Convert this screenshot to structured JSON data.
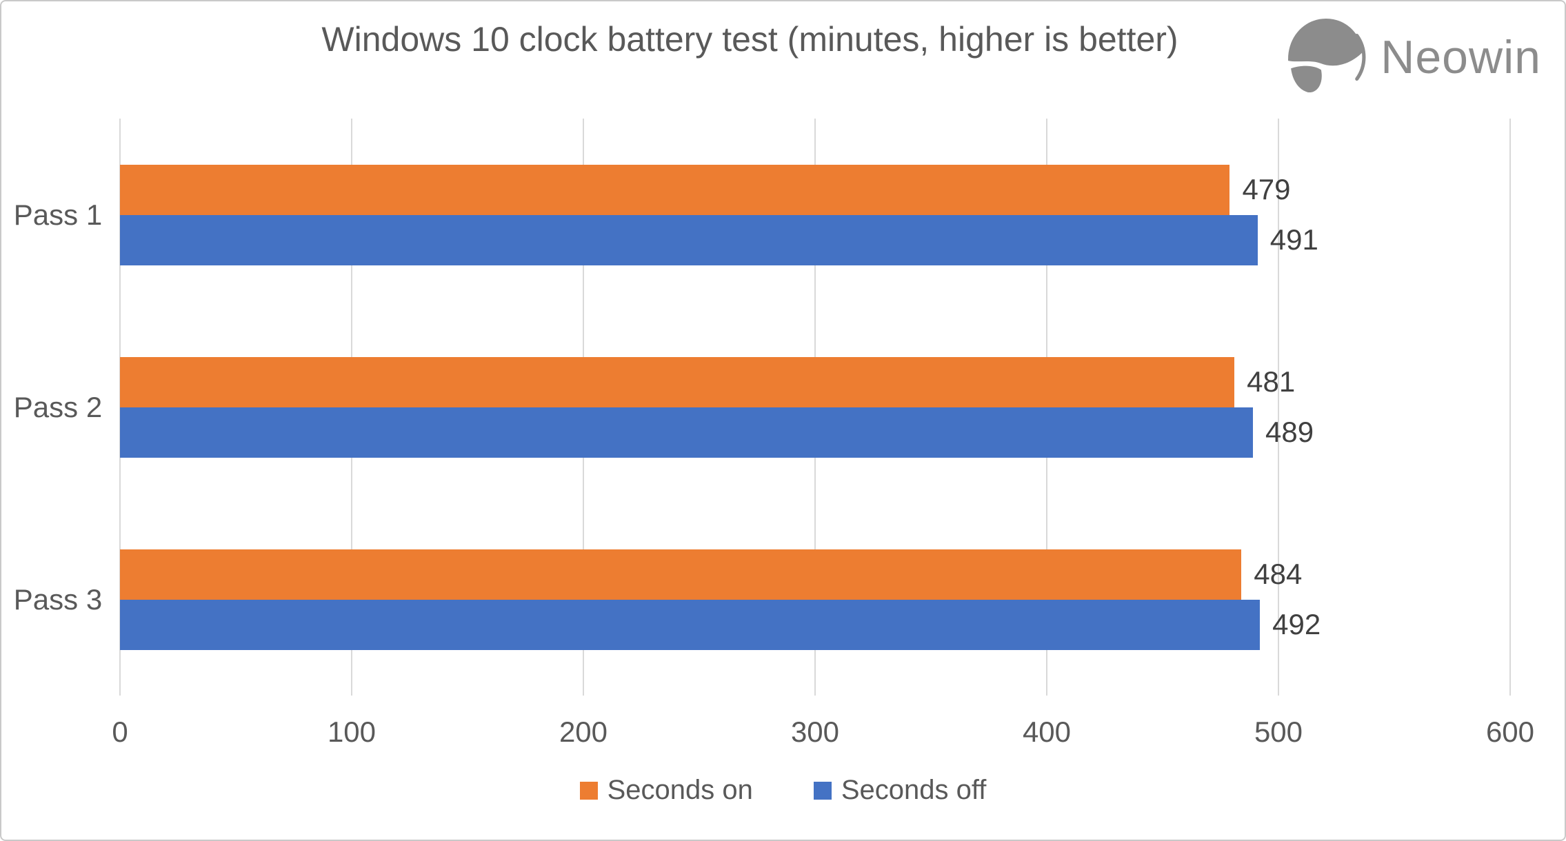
{
  "header": {
    "title": "Windows 10 clock battery test (minutes, higher is better)",
    "title_color": "#595959"
  },
  "logo": {
    "text": "Neowin",
    "color": "#8c8c8c"
  },
  "chart_data": {
    "type": "bar",
    "orientation": "horizontal",
    "title": "Windows 10 clock battery test (minutes, higher is better)",
    "categories": [
      "Pass 1",
      "Pass 2",
      "Pass 3"
    ],
    "series": [
      {
        "name": "Seconds on",
        "color": "#ED7D31",
        "values": [
          479,
          481,
          484
        ]
      },
      {
        "name": "Seconds off",
        "color": "#4472C4",
        "values": [
          491,
          489,
          492
        ]
      }
    ],
    "xlabel": "",
    "ylabel": "",
    "xlim": [
      0,
      600
    ],
    "x_ticks": [
      0,
      100,
      200,
      300,
      400,
      500,
      600
    ],
    "grid": "vertical",
    "gridline_color": "#d9d9d9",
    "data_labels": true,
    "data_label_color": "#404040",
    "tick_label_color": "#595959",
    "category_label_color": "#595959",
    "legend_position": "bottom"
  }
}
